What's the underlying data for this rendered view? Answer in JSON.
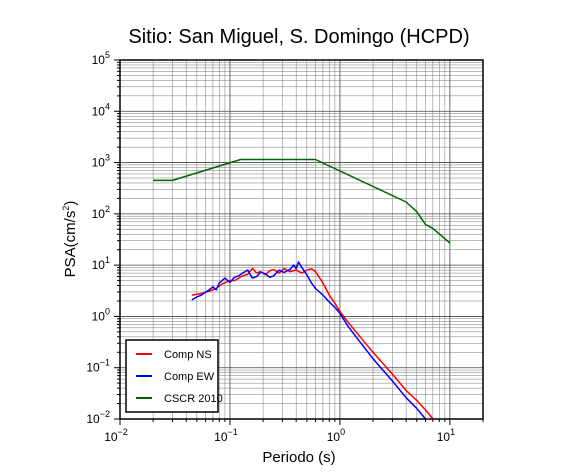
{
  "chart_data": {
    "type": "line",
    "title": "Sitio: San Miguel, S. Domingo (HCPD)",
    "xlabel": "Periodo (s)",
    "ylabel_base": "PSA(cm/s",
    "ylabel_exp": "2",
    "ylabel_close": ")",
    "xscale": "log",
    "yscale": "log",
    "xlim": [
      0.01,
      20
    ],
    "ylim": [
      0.01,
      100000
    ],
    "grid": true,
    "legend_position": "bottom-left",
    "xticks": [
      {
        "base": "10",
        "exp": "−2",
        "value": 0.01
      },
      {
        "base": "10",
        "exp": "−1",
        "value": 0.1
      },
      {
        "base": "10",
        "exp": "0",
        "value": 1
      },
      {
        "base": "10",
        "exp": "1",
        "value": 10
      }
    ],
    "yticks": [
      {
        "base": "10",
        "exp": "−2",
        "value": 0.01
      },
      {
        "base": "10",
        "exp": "−1",
        "value": 0.1
      },
      {
        "base": "10",
        "exp": "0",
        "value": 1
      },
      {
        "base": "10",
        "exp": "1",
        "value": 10
      },
      {
        "base": "10",
        "exp": "2",
        "value": 100
      },
      {
        "base": "10",
        "exp": "3",
        "value": 1000
      },
      {
        "base": "10",
        "exp": "4",
        "value": 10000
      },
      {
        "base": "10",
        "exp": "5",
        "value": 100000
      }
    ],
    "series": [
      {
        "name": "Comp NS",
        "color": "#ff0000",
        "x": [
          0.045,
          0.055,
          0.065,
          0.075,
          0.085,
          0.1,
          0.11,
          0.12,
          0.13,
          0.145,
          0.16,
          0.175,
          0.19,
          0.21,
          0.23,
          0.25,
          0.28,
          0.31,
          0.35,
          0.4,
          0.45,
          0.5,
          0.55,
          0.6,
          0.7,
          0.8,
          0.9,
          1.0,
          1.2,
          1.5,
          2.0,
          3.0,
          4.0,
          5.0,
          6.0,
          7.0
        ],
        "y": [
          2.6,
          2.8,
          3.1,
          3.5,
          4.3,
          5.0,
          5.0,
          5.6,
          6.2,
          6.6,
          8.6,
          7.0,
          7.5,
          6.5,
          7.8,
          8.2,
          7.0,
          8.6,
          7.5,
          8.0,
          7.0,
          8.0,
          8.5,
          7.5,
          4.5,
          2.6,
          1.8,
          1.25,
          0.75,
          0.42,
          0.2,
          0.075,
          0.036,
          0.023,
          0.015,
          0.01
        ]
      },
      {
        "name": "Comp EW",
        "color": "#0000ff",
        "x": [
          0.045,
          0.05,
          0.055,
          0.06,
          0.065,
          0.07,
          0.075,
          0.08,
          0.09,
          0.1,
          0.11,
          0.12,
          0.13,
          0.145,
          0.16,
          0.175,
          0.19,
          0.21,
          0.23,
          0.25,
          0.28,
          0.31,
          0.35,
          0.38,
          0.4,
          0.42,
          0.45,
          0.5,
          0.55,
          0.6,
          0.7,
          0.8,
          0.9,
          1.0,
          1.2,
          1.5,
          2.0,
          3.0,
          4.0,
          5.0,
          6.0
        ],
        "y": [
          2.1,
          2.4,
          2.6,
          3.0,
          3.3,
          3.8,
          3.3,
          4.5,
          5.6,
          4.6,
          5.8,
          6.2,
          7.0,
          8.0,
          5.6,
          6.0,
          7.3,
          6.8,
          5.8,
          6.2,
          8.0,
          7.2,
          8.2,
          10.0,
          8.5,
          11.5,
          9.0,
          6.5,
          4.5,
          3.5,
          2.6,
          1.9,
          1.5,
          1.15,
          0.62,
          0.33,
          0.15,
          0.055,
          0.026,
          0.016,
          0.01
        ]
      },
      {
        "name": "CSCR 2010",
        "color": "#006400",
        "x": [
          0.02,
          0.03,
          0.125,
          0.6,
          4.0,
          5.0,
          6.0,
          7.0,
          10.0
        ],
        "y": [
          450,
          450,
          1150,
          1150,
          170,
          110,
          62,
          52,
          27
        ]
      }
    ]
  }
}
